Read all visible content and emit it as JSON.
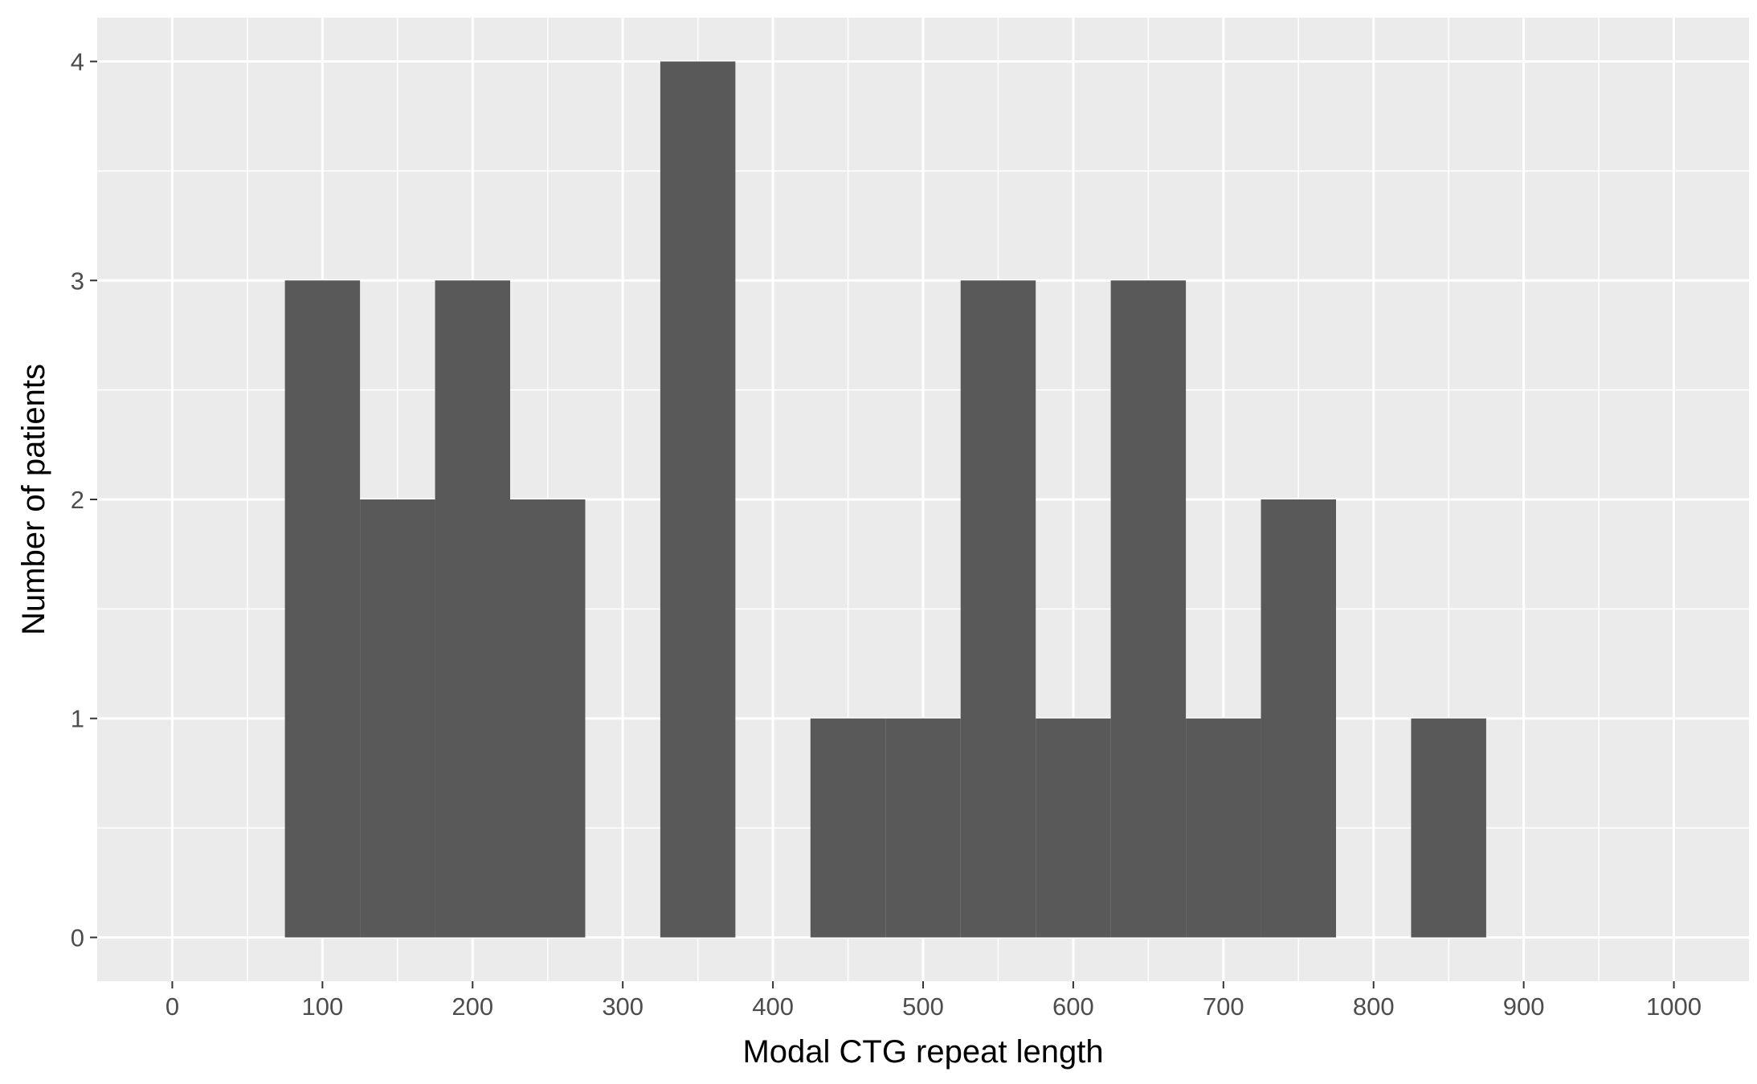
{
  "chart_data": {
    "type": "bar",
    "variant": "histogram",
    "title": "",
    "xlabel": "Modal CTG repeat length",
    "ylabel": "Number of patients",
    "bin_width": 50,
    "bins": [
      {
        "x": 100,
        "count": 3
      },
      {
        "x": 150,
        "count": 2
      },
      {
        "x": 200,
        "count": 3
      },
      {
        "x": 250,
        "count": 2
      },
      {
        "x": 300,
        "count": 0
      },
      {
        "x": 350,
        "count": 4
      },
      {
        "x": 400,
        "count": 0
      },
      {
        "x": 450,
        "count": 1
      },
      {
        "x": 500,
        "count": 1
      },
      {
        "x": 550,
        "count": 3
      },
      {
        "x": 600,
        "count": 1
      },
      {
        "x": 650,
        "count": 3
      },
      {
        "x": 700,
        "count": 1
      },
      {
        "x": 750,
        "count": 2
      },
      {
        "x": 800,
        "count": 0
      },
      {
        "x": 850,
        "count": 1
      }
    ],
    "xlim": [
      -50,
      1050
    ],
    "ylim": [
      -0.2,
      4.2
    ],
    "xticks": [
      0,
      100,
      200,
      300,
      400,
      500,
      600,
      700,
      800,
      900,
      1000
    ],
    "yticks": [
      0,
      1,
      2,
      3,
      4
    ],
    "grid": true,
    "legend": "none",
    "colors": {
      "bar": "#595959",
      "panel": "#ebebeb",
      "grid": "#ffffff",
      "tick_text": "#4d4d4d",
      "tick_mark": "#333333"
    }
  }
}
